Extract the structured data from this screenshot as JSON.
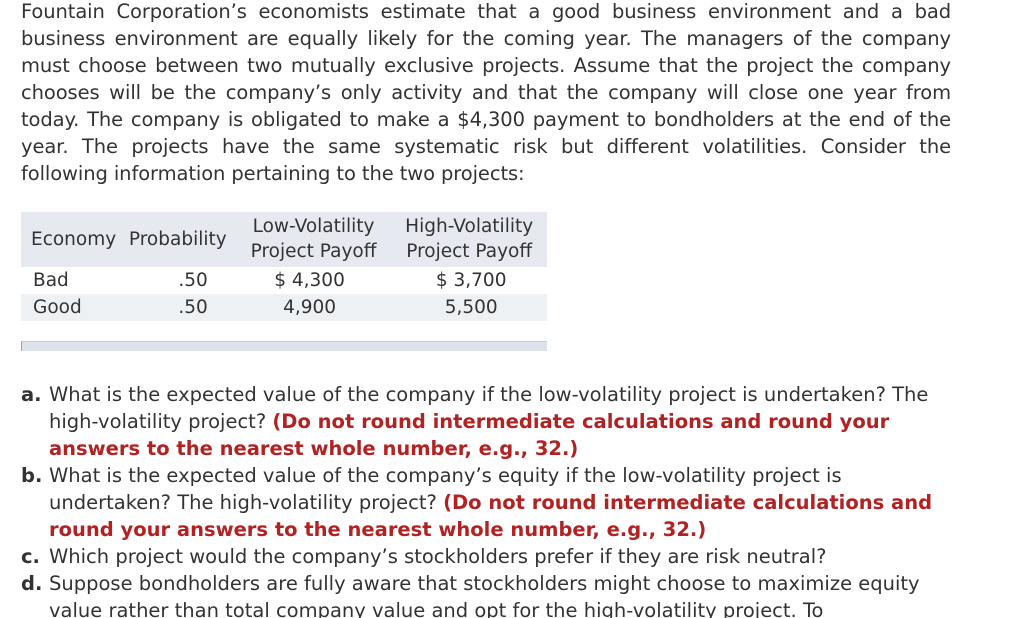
{
  "intro": "Fountain Corporation’s economists estimate that a good business environment and a bad business environment are equally likely for the coming year. The managers of the company must choose between two mutually exclusive projects. Assume that the project the company chooses will be the company’s only activity and that the company will close one year from today. The company is obligated to make a $4,300 payment to bondholders at the end of the year. The projects have the same systematic risk but different volatilities. Consider the following information pertaining to the two projects:",
  "table": {
    "headers": {
      "economy": "Economy",
      "probability": "Probability",
      "low_line1": "Low-Volatility",
      "low_line2": "Project Payoff",
      "high_line1": "High-Volatility",
      "high_line2": "Project Payoff"
    },
    "rows": [
      {
        "economy": "Bad",
        "probability": ".50",
        "low": "$ 4,300",
        "high": "$ 3,700"
      },
      {
        "economy": "Good",
        "probability": ".50",
        "low": "4,900",
        "high": "5,500"
      }
    ]
  },
  "questions": [
    {
      "label": "a.",
      "text": "What is the expected value of the company if the low-volatility project is undertaken? The high-volatility project?",
      "note": "(Do not round intermediate calculations and round your answers to the nearest whole number, e.g., 32.)"
    },
    {
      "label": "b.",
      "text": "What is the expected value of the company’s equity if the low-volatility project is undertaken? The high-volatility project?",
      "note": "(Do not round intermediate calculations and round your answers to the nearest whole number, e.g., 32.)"
    },
    {
      "label": "c.",
      "text": "Which project would the company’s stockholders prefer if they are risk neutral?",
      "note": ""
    },
    {
      "label": "d.",
      "text": "Suppose bondholders are fully aware that stockholders might choose to maximize equity value rather than total company value and opt for the high-volatility project. To",
      "note": ""
    }
  ]
}
